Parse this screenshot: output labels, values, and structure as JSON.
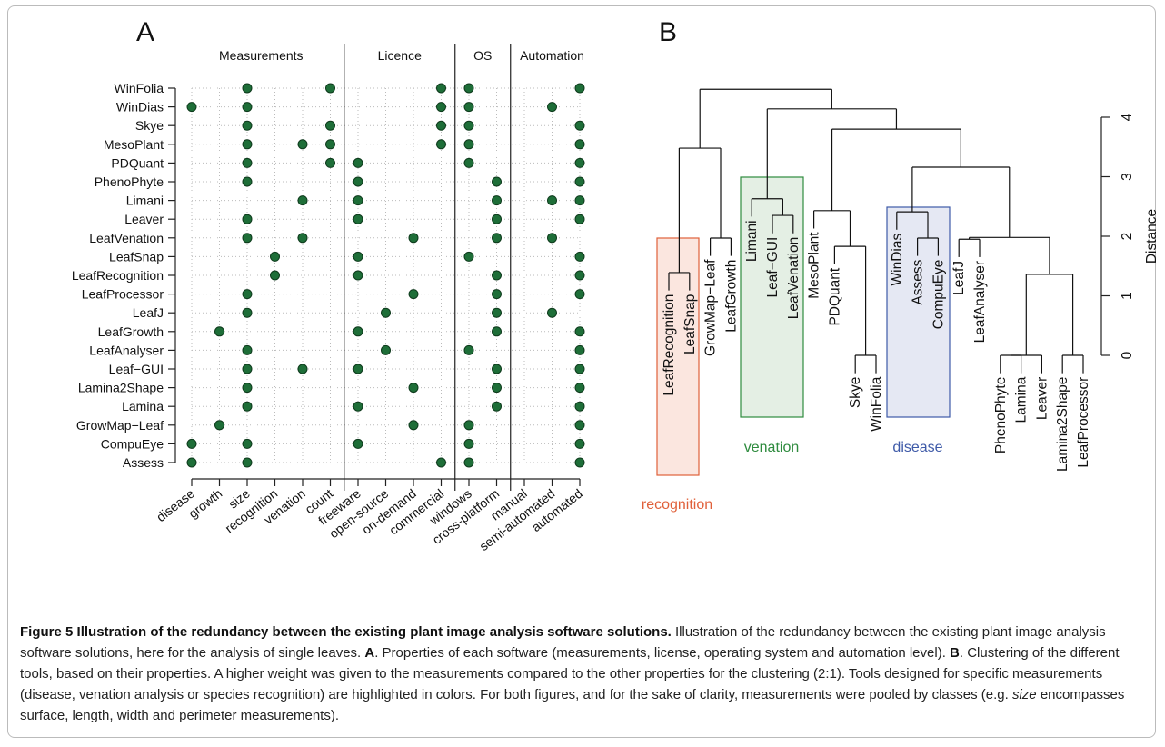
{
  "panel_a": {
    "label": "A",
    "groups": [
      {
        "name": "Measurements",
        "size": 6
      },
      {
        "name": "Licence",
        "size": 4
      },
      {
        "name": "OS",
        "size": 2
      },
      {
        "name": "Automation",
        "size": 3
      }
    ],
    "columns": [
      "disease",
      "growth",
      "size",
      "recognition",
      "venation",
      "count",
      "freeware",
      "open-source",
      "on-demand",
      "commercial",
      "windows",
      "cross-platform",
      "manual",
      "semi-automated",
      "automated"
    ],
    "rows": [
      {
        "name": "WinFolia",
        "has": [
          0,
          0,
          1,
          0,
          0,
          1,
          0,
          0,
          0,
          1,
          1,
          0,
          0,
          0,
          1
        ]
      },
      {
        "name": "WinDias",
        "has": [
          1,
          0,
          1,
          0,
          0,
          0,
          0,
          0,
          0,
          1,
          1,
          0,
          0,
          1,
          0
        ]
      },
      {
        "name": "Skye",
        "has": [
          0,
          0,
          1,
          0,
          0,
          1,
          0,
          0,
          0,
          1,
          1,
          0,
          0,
          0,
          1
        ]
      },
      {
        "name": "MesoPlant",
        "has": [
          0,
          0,
          1,
          0,
          1,
          1,
          0,
          0,
          0,
          1,
          1,
          0,
          0,
          0,
          1
        ]
      },
      {
        "name": "PDQuant",
        "has": [
          0,
          0,
          1,
          0,
          0,
          1,
          1,
          0,
          0,
          0,
          1,
          0,
          0,
          0,
          1
        ]
      },
      {
        "name": "PhenoPhyte",
        "has": [
          0,
          0,
          1,
          0,
          0,
          0,
          1,
          0,
          0,
          0,
          0,
          1,
          0,
          0,
          1
        ]
      },
      {
        "name": "Limani",
        "has": [
          0,
          0,
          0,
          0,
          1,
          0,
          1,
          0,
          0,
          0,
          0,
          1,
          0,
          1,
          1
        ]
      },
      {
        "name": "Leaver",
        "has": [
          0,
          0,
          1,
          0,
          0,
          0,
          1,
          0,
          0,
          0,
          0,
          1,
          0,
          0,
          1
        ]
      },
      {
        "name": "LeafVenation",
        "has": [
          0,
          0,
          1,
          0,
          1,
          0,
          0,
          0,
          1,
          0,
          0,
          1,
          0,
          1,
          0
        ]
      },
      {
        "name": "LeafSnap",
        "has": [
          0,
          0,
          0,
          1,
          0,
          0,
          1,
          0,
          0,
          0,
          1,
          0,
          0,
          0,
          1
        ]
      },
      {
        "name": "LeafRecognition",
        "has": [
          0,
          0,
          0,
          1,
          0,
          0,
          1,
          0,
          0,
          0,
          0,
          1,
          0,
          0,
          1
        ]
      },
      {
        "name": "LeafProcessor",
        "has": [
          0,
          0,
          1,
          0,
          0,
          0,
          0,
          0,
          1,
          0,
          0,
          1,
          0,
          0,
          1
        ]
      },
      {
        "name": "LeafJ",
        "has": [
          0,
          0,
          1,
          0,
          0,
          0,
          0,
          1,
          0,
          0,
          0,
          1,
          0,
          1,
          0
        ]
      },
      {
        "name": "LeafGrowth",
        "has": [
          0,
          1,
          0,
          0,
          0,
          0,
          1,
          0,
          0,
          0,
          0,
          1,
          0,
          0,
          1
        ]
      },
      {
        "name": "LeafAnalyser",
        "has": [
          0,
          0,
          1,
          0,
          0,
          0,
          0,
          1,
          0,
          0,
          1,
          0,
          0,
          0,
          1
        ]
      },
      {
        "name": "Leaf−GUI",
        "has": [
          0,
          0,
          1,
          0,
          1,
          0,
          1,
          0,
          0,
          0,
          0,
          1,
          0,
          0,
          1
        ]
      },
      {
        "name": "Lamina2Shape",
        "has": [
          0,
          0,
          1,
          0,
          0,
          0,
          0,
          0,
          1,
          0,
          0,
          1,
          0,
          0,
          1
        ]
      },
      {
        "name": "Lamina",
        "has": [
          0,
          0,
          1,
          0,
          0,
          0,
          1,
          0,
          0,
          0,
          0,
          1,
          0,
          0,
          1
        ]
      },
      {
        "name": "GrowMap−Leaf",
        "has": [
          0,
          1,
          0,
          0,
          0,
          0,
          0,
          0,
          1,
          0,
          1,
          0,
          0,
          0,
          1
        ]
      },
      {
        "name": "CompuEye",
        "has": [
          1,
          0,
          1,
          0,
          0,
          0,
          1,
          0,
          0,
          0,
          1,
          0,
          0,
          0,
          1
        ]
      },
      {
        "name": "Assess",
        "has": [
          1,
          0,
          1,
          0,
          0,
          0,
          0,
          0,
          0,
          1,
          1,
          0,
          0,
          0,
          1
        ]
      }
    ]
  },
  "panel_b": {
    "label": "B",
    "axis_label": "Distance",
    "ylim": [
      0,
      4
    ],
    "yticks": [
      0,
      1,
      2,
      3,
      4
    ],
    "hang": 0.3,
    "leaves": [
      "LeafRecognition",
      "LeafSnap",
      "GrowMap−Leaf",
      "LeafGrowth",
      "Limani",
      "Leaf−GUI",
      "LeafVenation",
      "MesoPlant",
      "PDQuant",
      "Skye",
      "WinFolia",
      "WinDias",
      "Assess",
      "CompuEye",
      "LeafJ",
      "LeafAnalyser",
      "PhenoPhyte",
      "Lamina",
      "Leaver",
      "Lamina2Shape",
      "LeafProcessor"
    ],
    "merges": [
      [
        -10,
        -11,
        0
      ],
      [
        -17,
        -18,
        0
      ],
      [
        2,
        -19,
        0
      ],
      [
        -20,
        -21,
        0
      ],
      [
        3,
        4,
        1.36
      ],
      [
        -1,
        -2,
        1.39
      ],
      [
        -9,
        1,
        1.83
      ],
      [
        -15,
        -16,
        1.95
      ],
      [
        -3,
        -4,
        1.97
      ],
      [
        -13,
        -14,
        1.97
      ],
      [
        8,
        5,
        1.98
      ],
      [
        -6,
        -7,
        2.35
      ],
      [
        -12,
        10,
        2.41
      ],
      [
        -8,
        7,
        2.43
      ],
      [
        -5,
        12,
        2.63
      ],
      [
        13,
        11,
        3.16
      ],
      [
        6,
        9,
        3.48
      ],
      [
        14,
        16,
        3.8
      ],
      [
        15,
        18,
        4.14
      ],
      [
        17,
        19,
        4.47
      ]
    ],
    "clusters": [
      {
        "name": "recognition",
        "color": "#e0603a"
      },
      {
        "name": "venation",
        "color": "#2e8b3e"
      },
      {
        "name": "disease",
        "color": "#3e5aa8"
      }
    ]
  },
  "caption": {
    "label": "Figure 5",
    "title": "Illustration of the redundancy between the existing plant image analysis software solutions.",
    "text_1": "Illustration of the redundancy between the existing plant image analysis software solutions, here for the analysis of single leaves.",
    "a": "A",
    "text_2": ". Properties of each software (measurements, license, operating system and automation level).",
    "b": "B",
    "text_3": ". Clustering of the different tools, based on their properties. A higher weight was given to the measurements compared to the other properties for the clustering (2:1). Tools designed for specific measurements (disease, venation analysis or species recognition) are highlighted in colors. For both figures, and for the sake of clarity, measurements were pooled by classes (e.g.",
    "em": "size",
    "text_4": "encompasses surface, length, width and perimeter measurements)."
  }
}
